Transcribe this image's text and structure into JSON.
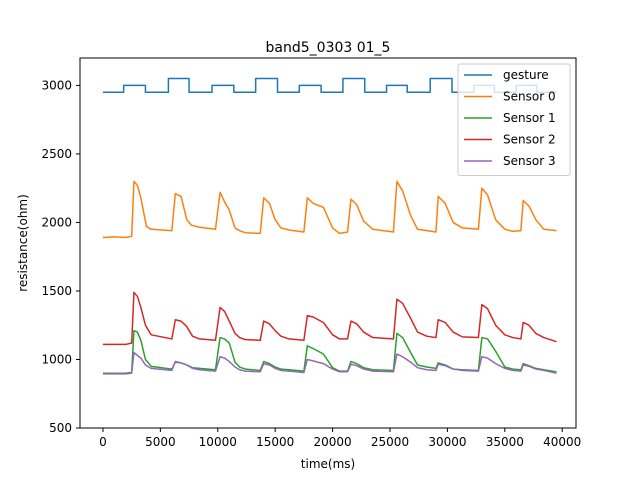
{
  "chart_data": {
    "type": "line",
    "title": "band5_0303 01_5",
    "xlabel": "time(ms)",
    "ylabel": "resistance(ohm)",
    "xlim": [
      -2000,
      41200
    ],
    "ylim": [
      500,
      3200
    ],
    "xticks": [
      0,
      5000,
      10000,
      15000,
      20000,
      25000,
      30000,
      35000,
      40000
    ],
    "yticks": [
      500,
      1000,
      1500,
      2000,
      2500,
      3000
    ],
    "grid": false,
    "legend_position": "top-right",
    "series": [
      {
        "name": "gesture",
        "color": "#1f77b4",
        "style": "step",
        "x": [
          0,
          1800,
          1800,
          3700,
          3700,
          5700,
          5700,
          7500,
          7500,
          9500,
          9500,
          11400,
          11400,
          13300,
          13300,
          15200,
          15200,
          17100,
          17100,
          19000,
          19000,
          20900,
          20900,
          22800,
          22800,
          24700,
          24700,
          26500,
          26500,
          28500,
          28500,
          30400,
          30400,
          32300,
          32300,
          34100,
          34100,
          36000,
          36000,
          37800,
          37800,
          39500
        ],
        "y": [
          2950,
          2950,
          3000,
          3000,
          2950,
          2950,
          3050,
          3050,
          2950,
          2950,
          3000,
          3000,
          2950,
          2950,
          3050,
          3050,
          2950,
          2950,
          3000,
          3000,
          2950,
          2950,
          3050,
          3050,
          2950,
          2950,
          3000,
          3000,
          2950,
          2950,
          3050,
          3050,
          2950,
          2950,
          3000,
          3000,
          2950,
          2950,
          3000,
          3000,
          2950,
          2950
        ]
      },
      {
        "name": "Sensor 0",
        "color": "#ff7f0e",
        "x": [
          0,
          1000,
          2000,
          2500,
          2700,
          3000,
          3300,
          3600,
          3800,
          4200,
          6000,
          6300,
          6800,
          7300,
          7700,
          8400,
          9800,
          10200,
          10600,
          11000,
          11500,
          11900,
          12400,
          13700,
          14000,
          14500,
          15000,
          15500,
          16200,
          17500,
          17800,
          18300,
          19200,
          20000,
          20600,
          21300,
          21600,
          22100,
          22700,
          23500,
          25300,
          25600,
          26100,
          26800,
          27400,
          28200,
          29000,
          29200,
          29800,
          30500,
          31300,
          32700,
          33000,
          33500,
          34200,
          35000,
          35700,
          36400,
          36600,
          37100,
          37700,
          38400,
          39500
        ],
        "y": [
          1890,
          1895,
          1890,
          1900,
          2300,
          2270,
          2180,
          2050,
          1970,
          1950,
          1940,
          2210,
          2190,
          2020,
          1980,
          1965,
          1950,
          2220,
          2150,
          2090,
          1960,
          1940,
          1925,
          1920,
          2180,
          2140,
          2020,
          1960,
          1945,
          1930,
          2180,
          2140,
          2110,
          1960,
          1920,
          1930,
          2170,
          2130,
          2010,
          1950,
          1930,
          2300,
          2230,
          2050,
          1950,
          1940,
          1930,
          2190,
          2140,
          2000,
          1960,
          1950,
          2250,
          2200,
          2020,
          1950,
          1935,
          1940,
          2160,
          2120,
          2020,
          1950,
          1940
        ]
      },
      {
        "name": "Sensor 1",
        "color": "#2ca02c",
        "x": [
          0,
          1000,
          2000,
          2500,
          2700,
          3000,
          3300,
          3700,
          4200,
          6000,
          6300,
          6800,
          7300,
          7800,
          8400,
          9800,
          10200,
          10600,
          11000,
          11500,
          11900,
          12400,
          13700,
          14000,
          14500,
          15000,
          15500,
          16200,
          17500,
          17800,
          18300,
          19200,
          20000,
          20600,
          21300,
          21600,
          22100,
          22700,
          23500,
          25300,
          25600,
          26100,
          26800,
          27400,
          28200,
          29000,
          29200,
          29800,
          30500,
          31300,
          32700,
          33000,
          33500,
          34200,
          35000,
          35700,
          36400,
          36600,
          37100,
          37700,
          38400,
          39500
        ],
        "y": [
          900,
          900,
          900,
          905,
          1210,
          1200,
          1140,
          1000,
          950,
          930,
          980,
          975,
          960,
          940,
          935,
          925,
          1160,
          1150,
          1120,
          980,
          945,
          930,
          920,
          985,
          970,
          945,
          930,
          925,
          915,
          1100,
          1080,
          1040,
          940,
          915,
          915,
          985,
          970,
          940,
          925,
          920,
          1190,
          1160,
          1050,
          960,
          945,
          935,
          975,
          960,
          930,
          925,
          920,
          1160,
          1150,
          1060,
          945,
          930,
          925,
          970,
          955,
          935,
          925,
          910
        ]
      },
      {
        "name": "Sensor 2",
        "color": "#d62728",
        "x": [
          0,
          1000,
          2000,
          2500,
          2700,
          3000,
          3300,
          3700,
          4200,
          6000,
          6300,
          6800,
          7300,
          7800,
          8400,
          9800,
          10200,
          10600,
          11000,
          11500,
          11900,
          12400,
          13700,
          14000,
          14500,
          15000,
          15500,
          16200,
          17500,
          17800,
          18300,
          19200,
          20000,
          20600,
          21300,
          21600,
          22100,
          22700,
          23500,
          25300,
          25600,
          26100,
          26800,
          27400,
          28200,
          29000,
          29200,
          29800,
          30500,
          31300,
          32700,
          33000,
          33500,
          34200,
          35000,
          35700,
          36400,
          36600,
          37100,
          37700,
          38400,
          39500
        ],
        "y": [
          1110,
          1110,
          1110,
          1120,
          1490,
          1460,
          1380,
          1250,
          1180,
          1150,
          1290,
          1280,
          1240,
          1170,
          1150,
          1140,
          1380,
          1350,
          1280,
          1190,
          1160,
          1145,
          1140,
          1280,
          1260,
          1210,
          1170,
          1150,
          1140,
          1320,
          1310,
          1270,
          1180,
          1150,
          1150,
          1280,
          1260,
          1200,
          1160,
          1150,
          1440,
          1410,
          1300,
          1200,
          1170,
          1160,
          1290,
          1270,
          1200,
          1165,
          1160,
          1400,
          1370,
          1250,
          1180,
          1160,
          1150,
          1270,
          1250,
          1190,
          1160,
          1130
        ]
      },
      {
        "name": "Sensor 3",
        "color": "#9467bd",
        "x": [
          0,
          1000,
          2000,
          2500,
          2700,
          3000,
          3300,
          3700,
          4200,
          6000,
          6300,
          6800,
          7300,
          7800,
          8400,
          9800,
          10200,
          10600,
          11000,
          11500,
          11900,
          12400,
          13700,
          14000,
          14500,
          15000,
          15500,
          16200,
          17500,
          17800,
          18300,
          19200,
          20000,
          20600,
          21300,
          21600,
          22100,
          22700,
          23500,
          25300,
          25600,
          26100,
          26800,
          27400,
          28200,
          29000,
          29200,
          29800,
          30500,
          31300,
          32700,
          33000,
          33500,
          34200,
          35000,
          35700,
          36400,
          36600,
          37100,
          37700,
          38400,
          39500
        ],
        "y": [
          895,
          895,
          895,
          900,
          1050,
          1030,
          1010,
          960,
          935,
          920,
          985,
          975,
          960,
          935,
          925,
          915,
          1020,
          1010,
          985,
          945,
          925,
          915,
          910,
          970,
          960,
          935,
          920,
          915,
          905,
          1000,
          990,
          970,
          930,
          910,
          910,
          965,
          955,
          930,
          915,
          910,
          1040,
          1020,
          980,
          940,
          925,
          920,
          965,
          955,
          930,
          920,
          915,
          1020,
          1010,
          970,
          935,
          920,
          915,
          960,
          950,
          930,
          920,
          900
        ]
      }
    ]
  }
}
